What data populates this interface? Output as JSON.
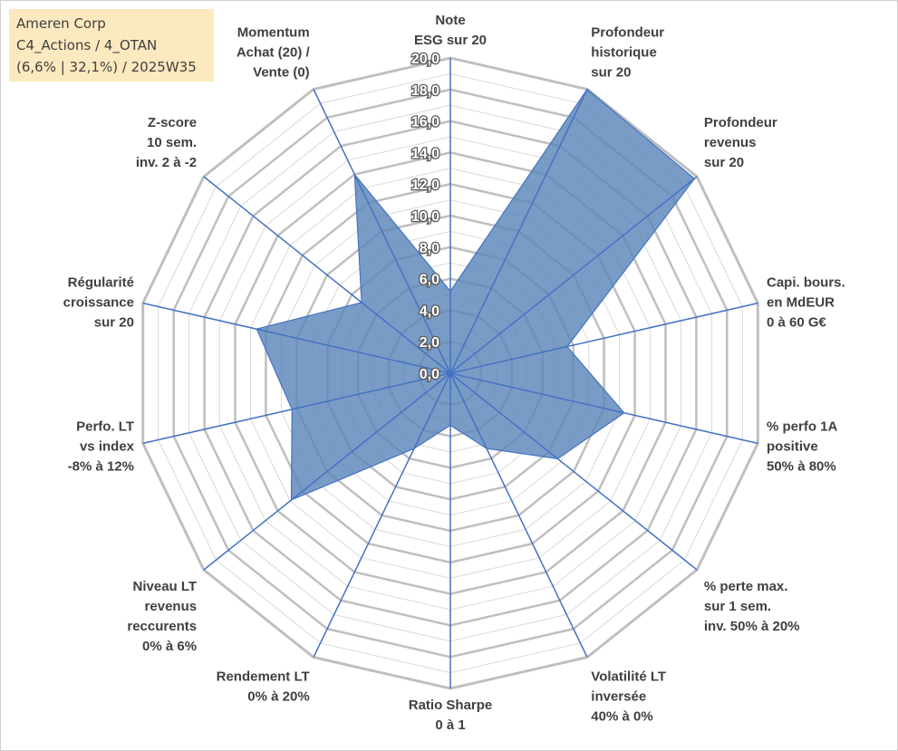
{
  "info_box": {
    "line1": "Ameren Corp",
    "line2": "C4_Actions / 4_OTAN",
    "line3": "(6,6% | 32,1%) / 2025W35"
  },
  "colors": {
    "fill": "#5b86b9",
    "axis": "#4472c4",
    "grid_major": "#bfbfbf",
    "grid_minor": "#d9d9d9",
    "info_bg": "#fde9bf"
  },
  "chart_data": {
    "type": "radar",
    "rmin": 0,
    "rmax": 20,
    "major_step": 2,
    "minor_step": 1,
    "tick_labels": [
      "0,0",
      "2,0",
      "4,0",
      "6,0",
      "8,0",
      "10,0",
      "12,0",
      "14,0",
      "16,0",
      "18,0",
      "20,0"
    ],
    "axes": [
      {
        "label": [
          "Note",
          "ESG sur 20"
        ]
      },
      {
        "label": [
          "Profondeur",
          "historique",
          "sur 20"
        ]
      },
      {
        "label": [
          "Profondeur",
          "revenus",
          "sur 20"
        ]
      },
      {
        "label": [
          "Capi. bours.",
          "en MdEUR",
          "0 à 60 G€"
        ]
      },
      {
        "label": [
          "% perfo 1A",
          "positive",
          "50% à 80%"
        ]
      },
      {
        "label": [
          "% perte max.",
          "sur 1 sem.",
          "inv. 50% à 20%"
        ]
      },
      {
        "label": [
          "Volatilité LT",
          "inversée",
          "40% à 0%"
        ]
      },
      {
        "label": [
          "Ratio Sharpe",
          "0 à 1"
        ]
      },
      {
        "label": [
          "Rendement LT",
          "0% à 20%"
        ]
      },
      {
        "label": [
          "Niveau LT",
          "revenus",
          "reccurents",
          "0% à 6%"
        ]
      },
      {
        "label": [
          "Perfo. LT",
          "vs index",
          "-8% à 12%"
        ]
      },
      {
        "label": [
          "Régularité",
          "croissance",
          "sur 20"
        ]
      },
      {
        "label": [
          "Z-score",
          "10 sem.",
          "inv. 2 à -2"
        ]
      },
      {
        "label": [
          "Momentum",
          "Achat (20) /",
          "Vente (0)"
        ]
      }
    ],
    "series": [
      {
        "values": [
          5.2,
          20.0,
          19.8,
          7.6,
          11.3,
          8.7,
          5.3,
          3.3,
          5.3,
          12.9,
          10.3,
          12.6,
          7.2,
          14.0
        ]
      }
    ]
  }
}
